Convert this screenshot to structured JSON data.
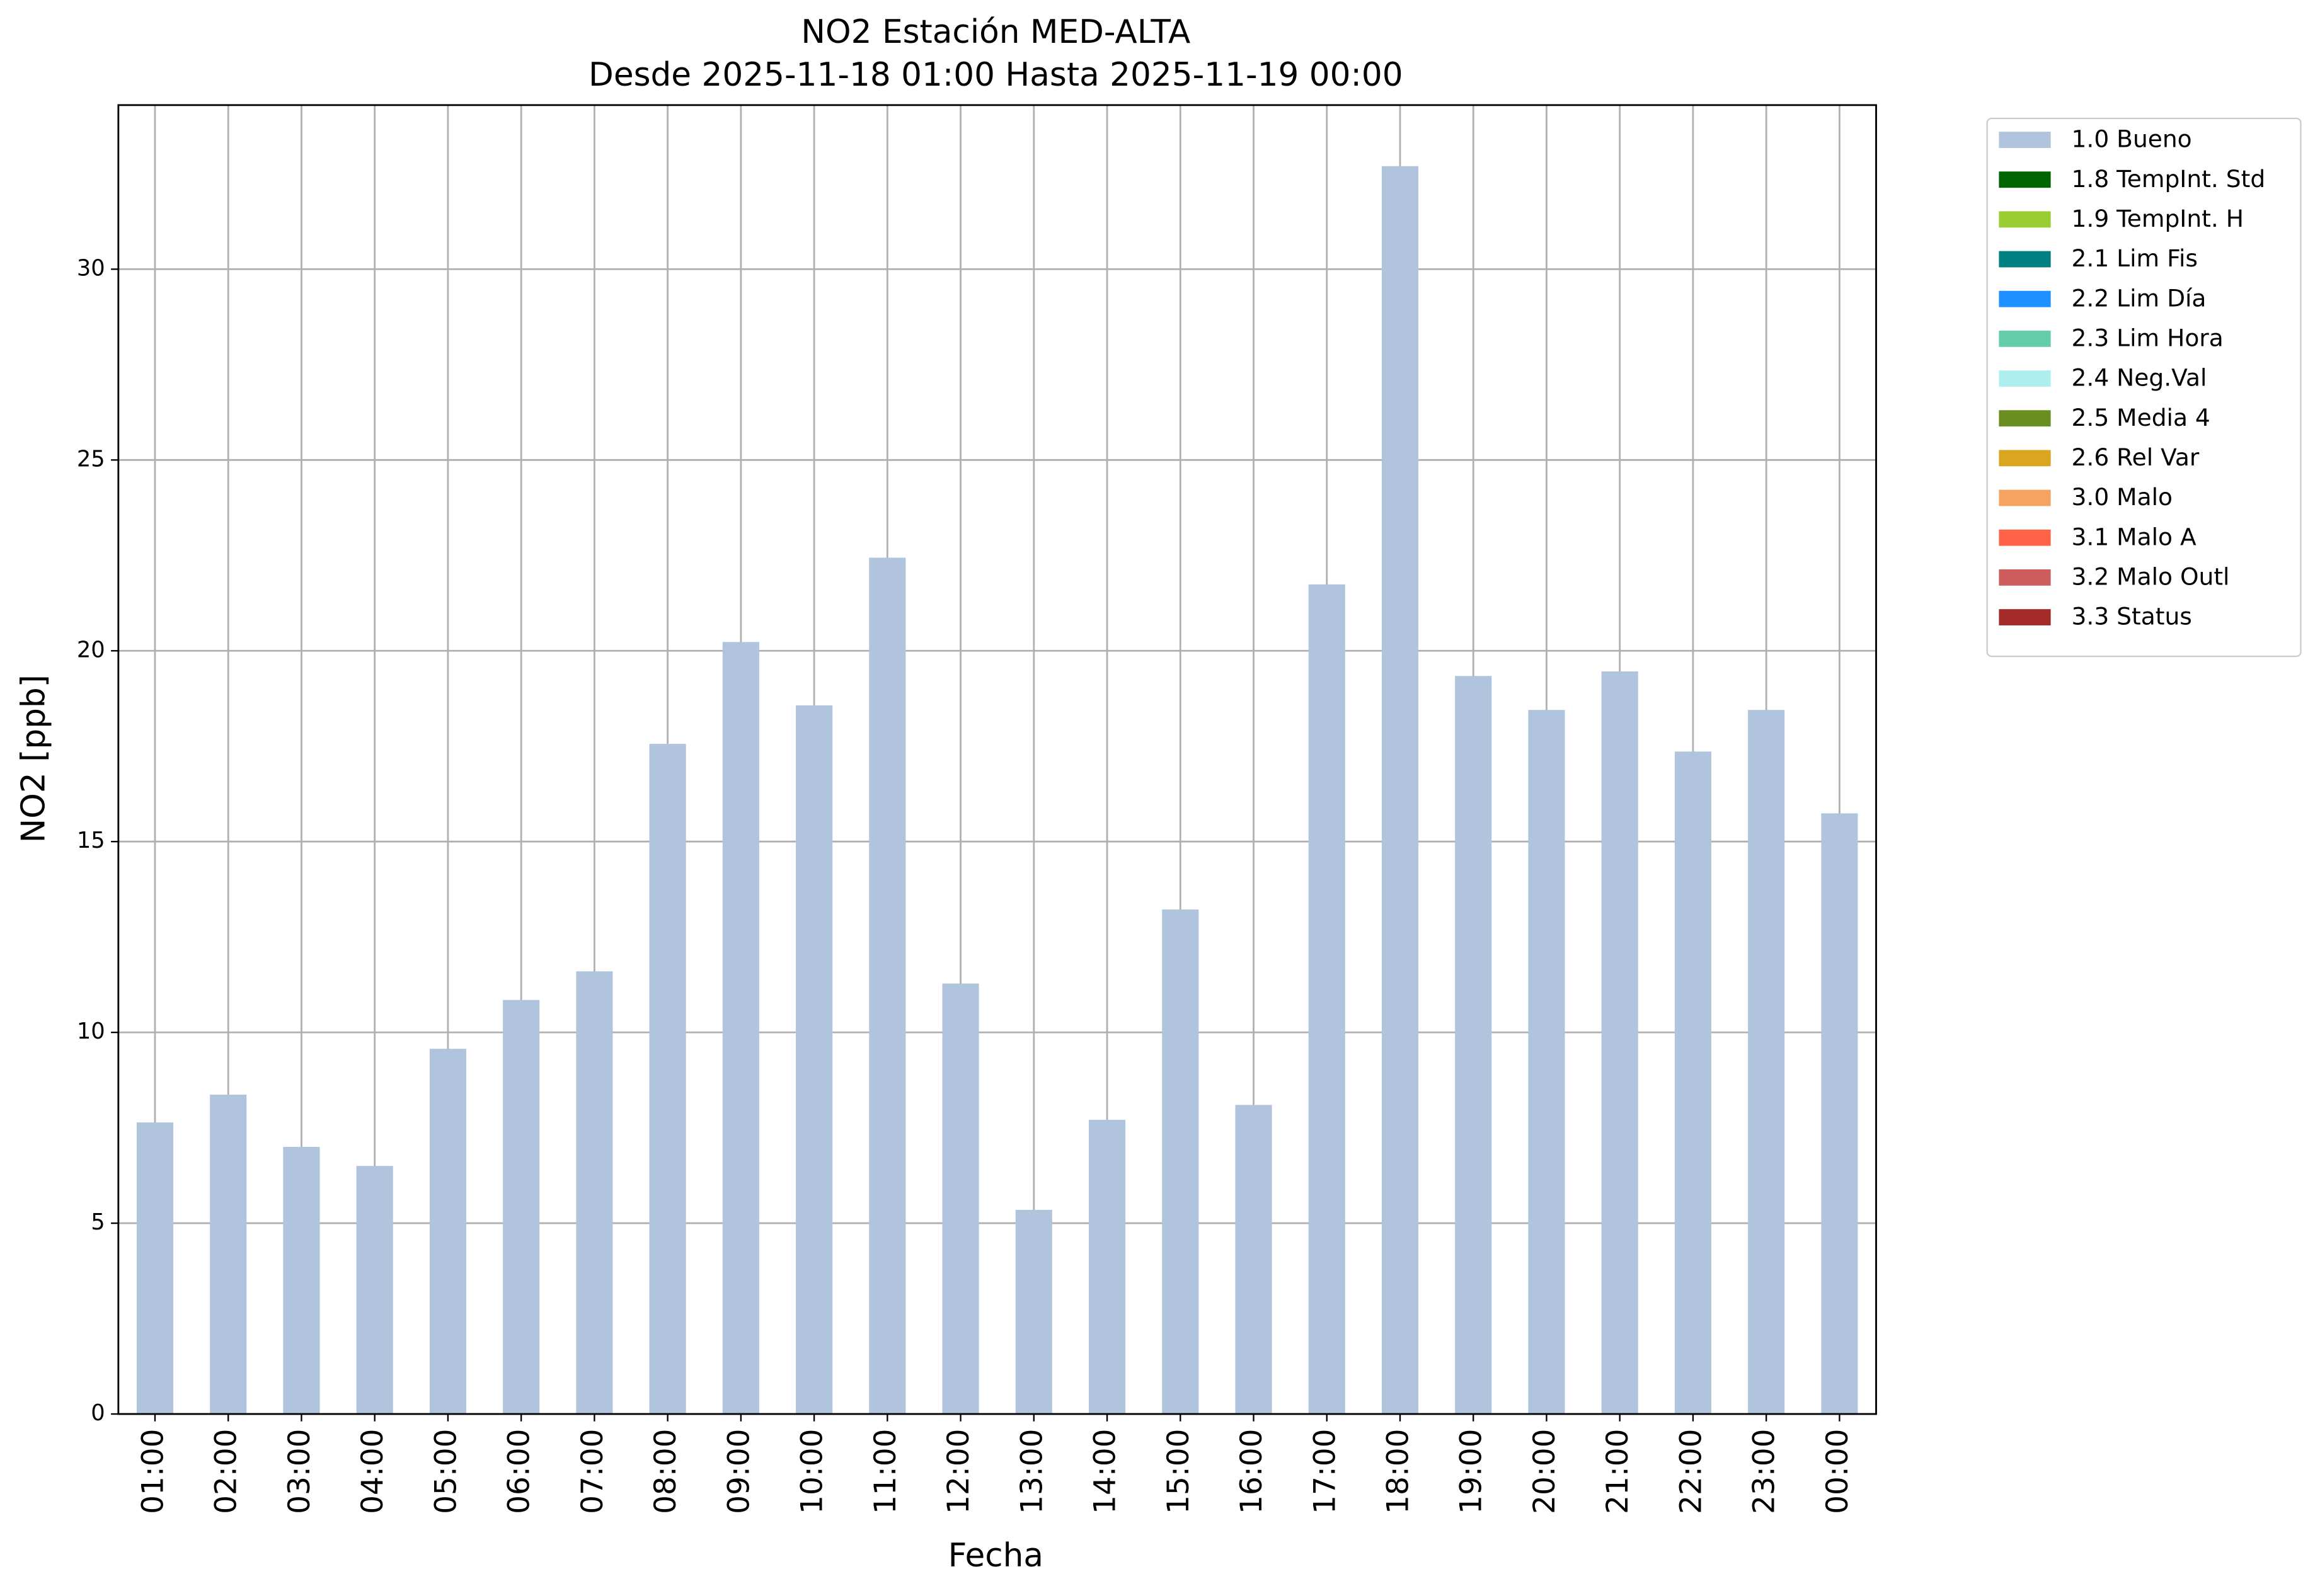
{
  "chart_data": {
    "type": "stacked_bar",
    "title": "NO2 Estación MED-ALTA",
    "subtitle": "Desde 2025-11-18 01:00 Hasta 2025-11-19 00:00",
    "xlabel": "Fecha",
    "ylabel": "NO2 [ppb]",
    "categories": [
      "01:00",
      "02:00",
      "03:00",
      "04:00",
      "05:00",
      "06:00",
      "07:00",
      "08:00",
      "09:00",
      "10:00",
      "11:00",
      "12:00",
      "13:00",
      "14:00",
      "15:00",
      "16:00",
      "17:00",
      "18:00",
      "19:00",
      "20:00",
      "21:00",
      "22:00",
      "23:00",
      "00:00"
    ],
    "series": [
      {
        "name": "1.0 Bueno",
        "color": "#b0c4de",
        "values": [
          7.64,
          8.37,
          7.0,
          6.5,
          9.57,
          10.85,
          11.6,
          17.56,
          20.23,
          18.57,
          22.44,
          11.28,
          5.35,
          7.71,
          13.22,
          8.1,
          21.74,
          32.7,
          19.34,
          18.45,
          19.46,
          17.36,
          18.45,
          15.74
        ]
      },
      {
        "name": "1.8 TempInt. Std",
        "color": "#006400",
        "values": [
          0,
          0,
          0,
          0,
          0,
          0,
          0,
          0,
          0,
          0,
          0,
          0,
          0,
          0,
          0,
          0,
          0,
          0,
          0,
          0,
          0,
          0,
          0,
          0
        ]
      },
      {
        "name": "1.9 TempInt. H",
        "color": "#9acd32",
        "values": [
          0,
          0,
          0,
          0,
          0,
          0,
          0,
          0,
          0,
          0,
          0,
          0,
          0,
          0,
          0,
          0,
          0,
          0,
          0,
          0,
          0,
          0,
          0,
          0
        ]
      },
      {
        "name": "2.1 Lim Fis",
        "color": "#008080",
        "values": [
          0,
          0,
          0,
          0,
          0,
          0,
          0,
          0,
          0,
          0,
          0,
          0,
          0,
          0,
          0,
          0,
          0,
          0,
          0,
          0,
          0,
          0,
          0,
          0
        ]
      },
      {
        "name": "2.2 Lim Día",
        "color": "#1e90ff",
        "values": [
          0,
          0,
          0,
          0,
          0,
          0,
          0,
          0,
          0,
          0,
          0,
          0,
          0,
          0,
          0,
          0,
          0,
          0,
          0,
          0,
          0,
          0,
          0,
          0
        ]
      },
      {
        "name": "2.3 Lim Hora",
        "color": "#66cdaa",
        "values": [
          0,
          0,
          0,
          0,
          0,
          0,
          0,
          0,
          0,
          0,
          0,
          0,
          0,
          0,
          0,
          0,
          0,
          0,
          0,
          0,
          0,
          0,
          0,
          0
        ]
      },
      {
        "name": "2.4 Neg.Val",
        "color": "#afeeee",
        "values": [
          0,
          0,
          0,
          0,
          0,
          0,
          0,
          0,
          0,
          0,
          0,
          0,
          0,
          0,
          0,
          0,
          0,
          0,
          0,
          0,
          0,
          0,
          0,
          0
        ]
      },
      {
        "name": "2.5 Media 4",
        "color": "#6b8e23",
        "values": [
          0,
          0,
          0,
          0,
          0,
          0,
          0,
          0,
          0,
          0,
          0,
          0,
          0,
          0,
          0,
          0,
          0,
          0,
          0,
          0,
          0,
          0,
          0,
          0
        ]
      },
      {
        "name": "2.6 Rel Var",
        "color": "#daa520",
        "values": [
          0,
          0,
          0,
          0,
          0,
          0,
          0,
          0,
          0,
          0,
          0,
          0,
          0,
          0,
          0,
          0,
          0,
          0,
          0,
          0,
          0,
          0,
          0,
          0
        ]
      },
      {
        "name": "3.0 Malo",
        "color": "#f4a460",
        "values": [
          0,
          0,
          0,
          0,
          0,
          0,
          0,
          0,
          0,
          0,
          0,
          0,
          0,
          0,
          0,
          0,
          0,
          0,
          0,
          0,
          0,
          0,
          0,
          0
        ]
      },
      {
        "name": "3.1 Malo A",
        "color": "#ff6347",
        "values": [
          0,
          0,
          0,
          0,
          0,
          0,
          0,
          0,
          0,
          0,
          0,
          0,
          0,
          0,
          0,
          0,
          0,
          0,
          0,
          0,
          0,
          0,
          0,
          0
        ]
      },
      {
        "name": "3.2 Malo Outl",
        "color": "#cd5c5c",
        "values": [
          0,
          0,
          0,
          0,
          0,
          0,
          0,
          0,
          0,
          0,
          0,
          0,
          0,
          0,
          0,
          0,
          0,
          0,
          0,
          0,
          0,
          0,
          0,
          0
        ]
      },
      {
        "name": "3.3 Status",
        "color": "#a52a2a",
        "values": [
          0,
          0,
          0,
          0,
          0,
          0,
          0,
          0,
          0,
          0,
          0,
          0,
          0,
          0,
          0,
          0,
          0,
          0,
          0,
          0,
          0,
          0,
          0,
          0
        ]
      }
    ],
    "ylim": [
      0,
      34.3
    ],
    "yticks": [
      0,
      5,
      10,
      15,
      20,
      25,
      30
    ],
    "grid": true,
    "legend": "outside-upper-right"
  }
}
